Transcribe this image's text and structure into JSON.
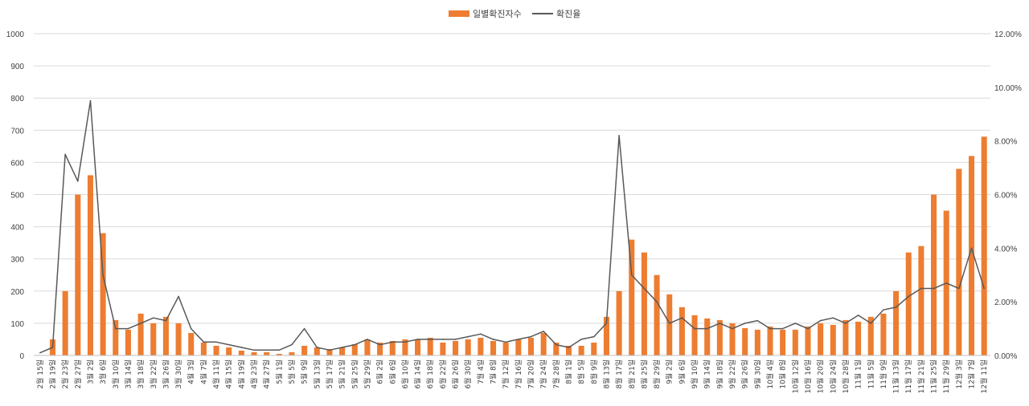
{
  "chart_data": {
    "type": "bar",
    "title": "",
    "xlabel": "",
    "ylabel": "",
    "ylim": [
      0,
      1000
    ],
    "y2lim": [
      0,
      0.12
    ],
    "y_ticks": [
      0,
      100,
      200,
      300,
      400,
      500,
      600,
      700,
      800,
      900,
      1000
    ],
    "y2_ticks": [
      "0.00%",
      "2.00%",
      "4.00%",
      "6.00%",
      "8.00%",
      "10.00%",
      "12.00%"
    ],
    "grid": true,
    "legend_position": "top-center",
    "colors": {
      "bar": "#ED7D31",
      "line": "#595959",
      "grid": "#D9D9D9",
      "axis": "#BFBFBF"
    },
    "categories": [
      "2월 15일",
      "2월 19일",
      "2월 23일",
      "2월 27일",
      "3월 2일",
      "3월 6일",
      "3월 10일",
      "3월 14일",
      "3월 18일",
      "3월 22일",
      "3월 26일",
      "3월 30일",
      "4월 3일",
      "4월 7일",
      "4월 11일",
      "4월 15일",
      "4월 19일",
      "4월 23일",
      "4월 27일",
      "5월 1일",
      "5월 5일",
      "5월 9일",
      "5월 13일",
      "5월 17일",
      "5월 21일",
      "5월 25일",
      "5월 29일",
      "6월 2일",
      "6월 6일",
      "6월 10일",
      "6월 14일",
      "6월 18일",
      "6월 22일",
      "6월 26일",
      "6월 30일",
      "7월 4일",
      "7월 8일",
      "7월 12일",
      "7월 16일",
      "7월 20일",
      "7월 24일",
      "7월 28일",
      "8월 1일",
      "8월 5일",
      "8월 9일",
      "8월 13일",
      "8월 17일",
      "8월 21일",
      "8월 25일",
      "8월 29일",
      "9월 2일",
      "9월 6일",
      "9월 10일",
      "9월 14일",
      "9월 18일",
      "9월 22일",
      "9월 26일",
      "9월 30일",
      "10월 4일",
      "10월 8일",
      "10월 12일",
      "10월 16일",
      "10월 20일",
      "10월 24일",
      "10월 28일",
      "11월 1일",
      "11월 5일",
      "11월 9일",
      "11월 13일",
      "11월 17일",
      "11월 21일",
      "11월 25일",
      "11월 29일",
      "12월 3일",
      "12월 7일",
      "12월 11일"
    ],
    "series": [
      {
        "name": "일별확진자수",
        "kind": "bar",
        "axis": "left",
        "values": [
          0,
          50,
          200,
          500,
          560,
          380,
          110,
          80,
          130,
          100,
          120,
          100,
          70,
          40,
          30,
          25,
          15,
          10,
          10,
          5,
          10,
          30,
          25,
          20,
          25,
          35,
          50,
          40,
          45,
          50,
          50,
          55,
          40,
          45,
          50,
          55,
          45,
          40,
          50,
          55,
          70,
          40,
          30,
          30,
          40,
          120,
          200,
          360,
          320,
          250,
          190,
          150,
          125,
          115,
          110,
          100,
          85,
          80,
          90,
          80,
          80,
          90,
          100,
          95,
          110,
          105,
          120,
          130,
          200,
          320,
          340,
          500,
          450,
          580,
          620,
          680
        ]
      },
      {
        "name": "확진율",
        "kind": "line",
        "axis": "right",
        "values": [
          0.001,
          0.003,
          0.075,
          0.065,
          0.095,
          0.03,
          0.01,
          0.01,
          0.012,
          0.014,
          0.013,
          0.022,
          0.01,
          0.005,
          0.005,
          0.004,
          0.003,
          0.002,
          0.002,
          0.002,
          0.004,
          0.01,
          0.003,
          0.002,
          0.003,
          0.004,
          0.006,
          0.004,
          0.005,
          0.005,
          0.006,
          0.006,
          0.006,
          0.006,
          0.007,
          0.008,
          0.006,
          0.005,
          0.006,
          0.007,
          0.009,
          0.004,
          0.003,
          0.006,
          0.007,
          0.012,
          0.082,
          0.03,
          0.025,
          0.02,
          0.012,
          0.014,
          0.01,
          0.01,
          0.012,
          0.01,
          0.012,
          0.013,
          0.01,
          0.01,
          0.012,
          0.01,
          0.013,
          0.014,
          0.012,
          0.015,
          0.012,
          0.017,
          0.018,
          0.022,
          0.025,
          0.025,
          0.027,
          0.025,
          0.04,
          0.025
        ]
      }
    ]
  }
}
